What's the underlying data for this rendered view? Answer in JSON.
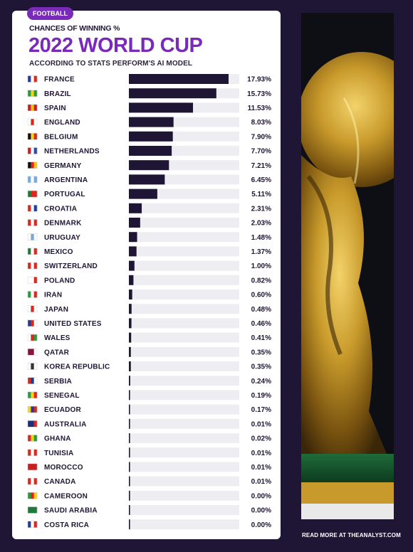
{
  "header": {
    "badge": "FOOTBALL",
    "subtitle": "CHANCES OF WINNING %",
    "title": "2022 WORLD CUP",
    "source": "ACCORDING TO STATS PERFORM'S AI MODEL"
  },
  "footer": {
    "link_text": "READ MORE AT THEANALYST.COM"
  },
  "colors": {
    "bar": "#1f1534",
    "track": "#eeeef2",
    "accent": "#7a2ab8",
    "background": "#1f1534"
  },
  "chart_data": {
    "type": "bar",
    "orientation": "horizontal",
    "title": "2022 WORLD CUP",
    "subtitle": "CHANCES OF WINNING %",
    "xlim": [
      0,
      17.93
    ],
    "categories": [
      "FRANCE",
      "BRAZIL",
      "SPAIN",
      "ENGLAND",
      "BELGIUM",
      "NETHERLANDS",
      "GERMANY",
      "ARGENTINA",
      "PORTUGAL",
      "CROATIA",
      "DENMARK",
      "URUGUAY",
      "MEXICO",
      "SWITZERLAND",
      "POLAND",
      "IRAN",
      "JAPAN",
      "UNITED STATES",
      "WALES",
      "QATAR",
      "KOREA REPUBLIC",
      "SERBIA",
      "SENEGAL",
      "ECUADOR",
      "AUSTRALIA",
      "GHANA",
      "TUNISIA",
      "MOROCCO",
      "CANADA",
      "CAMEROON",
      "SAUDI ARABIA",
      "COSTA RICA"
    ],
    "values": [
      17.93,
      15.73,
      11.53,
      8.03,
      7.9,
      7.7,
      7.21,
      6.45,
      5.11,
      2.31,
      2.03,
      1.48,
      1.37,
      1.0,
      0.82,
      0.6,
      0.48,
      0.46,
      0.41,
      0.35,
      0.35,
      0.24,
      0.19,
      0.17,
      0.01,
      0.02,
      0.01,
      0.01,
      0.01,
      0.0,
      0.0,
      0.0
    ],
    "value_labels": [
      "17.93%",
      "15.73%",
      "11.53%",
      "8.03%",
      "7.90%",
      "7.70%",
      "7.21%",
      "6.45%",
      "5.11%",
      "2.31%",
      "2.03%",
      "1.48%",
      "1.37%",
      "1.00%",
      "0.82%",
      "0.60%",
      "0.48%",
      "0.46%",
      "0.41%",
      "0.35%",
      "0.35%",
      "0.24%",
      "0.19%",
      "0.17%",
      "0.01%",
      "0.02%",
      "0.01%",
      "0.01%",
      "0.01%",
      "0.00%",
      "0.00%",
      "0.00%"
    ],
    "flag_icons": [
      "france-flag-icon",
      "brazil-flag-icon",
      "spain-flag-icon",
      "england-flag-icon",
      "belgium-flag-icon",
      "netherlands-flag-icon",
      "germany-flag-icon",
      "argentina-flag-icon",
      "portugal-flag-icon",
      "croatia-flag-icon",
      "denmark-flag-icon",
      "uruguay-flag-icon",
      "mexico-flag-icon",
      "switzerland-flag-icon",
      "poland-flag-icon",
      "iran-flag-icon",
      "japan-flag-icon",
      "united-states-flag-icon",
      "wales-flag-icon",
      "qatar-flag-icon",
      "korea-republic-flag-icon",
      "serbia-flag-icon",
      "senegal-flag-icon",
      "ecuador-flag-icon",
      "australia-flag-icon",
      "ghana-flag-icon",
      "tunisia-flag-icon",
      "morocco-flag-icon",
      "canada-flag-icon",
      "cameroon-flag-icon",
      "saudi-arabia-flag-icon",
      "costa-rica-flag-icon"
    ],
    "grid": false,
    "legend": "none"
  }
}
